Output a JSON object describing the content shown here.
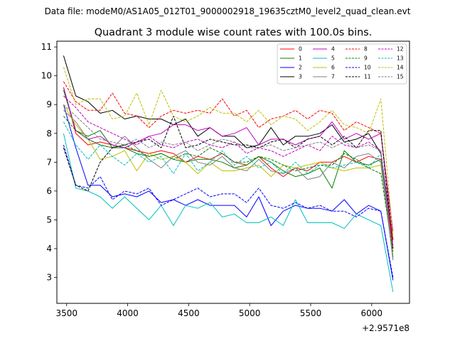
{
  "chart_data": {
    "type": "line",
    "suptitle": "Data file: modeM0/AS1A05_012T01_9000002918_19635cztM0_level2_quad_clean.evt",
    "title": "Quadrant 3 module wise count rates with 100.0s bins.",
    "xlabel": "",
    "ylabel": "",
    "x_offset_label": "+2.9571e8",
    "xlim": [
      3420,
      6310
    ],
    "ylim": [
      2.1,
      11.2
    ],
    "xticks": [
      3500,
      4000,
      4500,
      5000,
      5500,
      6000
    ],
    "yticks": [
      3,
      4,
      5,
      6,
      7,
      8,
      9,
      10,
      11
    ],
    "x": [
      3475,
      3575,
      3675,
      3775,
      3875,
      3975,
      4075,
      4175,
      4275,
      4375,
      4475,
      4575,
      4675,
      4775,
      4875,
      4975,
      5075,
      5175,
      5275,
      5375,
      5475,
      5575,
      5675,
      5775,
      5875,
      5975,
      6075,
      6175
    ],
    "legend_loc": "upper right",
    "series": [
      {
        "name": "0",
        "color": "#ff0000",
        "dash": "solid",
        "values": [
          9.6,
          8.0,
          7.6,
          7.7,
          7.6,
          7.5,
          7.4,
          7.3,
          7.4,
          7.3,
          7.0,
          7.2,
          7.1,
          7.3,
          7.0,
          6.9,
          7.2,
          6.8,
          6.5,
          6.8,
          6.7,
          7.0,
          7.0,
          7.2,
          7.0,
          7.2,
          7.1,
          4.0
        ]
      },
      {
        "name": "1",
        "color": "#008000",
        "dash": "solid",
        "values": [
          9.5,
          8.1,
          7.9,
          8.1,
          7.5,
          7.5,
          7.3,
          7.2,
          7.3,
          7.1,
          7.0,
          7.1,
          7.1,
          7.0,
          6.8,
          6.9,
          7.2,
          7.0,
          6.7,
          6.5,
          6.6,
          6.8,
          6.1,
          7.4,
          7.0,
          6.9,
          7.1,
          3.7
        ]
      },
      {
        "name": "2",
        "color": "#0000ff",
        "dash": "solid",
        "values": [
          9.0,
          7.5,
          6.2,
          6.2,
          5.8,
          5.9,
          5.8,
          6.0,
          5.6,
          5.7,
          5.5,
          5.7,
          5.5,
          5.5,
          5.5,
          5.1,
          5.8,
          4.8,
          5.3,
          5.5,
          5.4,
          5.4,
          5.3,
          5.7,
          5.2,
          5.5,
          5.3,
          2.9
        ]
      },
      {
        "name": "3",
        "color": "#000000",
        "dash": "solid",
        "values": [
          10.7,
          9.3,
          9.1,
          8.7,
          8.8,
          8.5,
          8.6,
          8.5,
          8.5,
          8.3,
          8.5,
          7.9,
          8.2,
          7.9,
          7.9,
          7.5,
          7.6,
          8.2,
          7.6,
          7.9,
          7.9,
          8.0,
          8.3,
          7.7,
          7.8,
          8.0,
          7.3,
          4.3
        ]
      },
      {
        "name": "4",
        "color": "#bf00bf",
        "dash": "solid",
        "values": [
          9.6,
          8.1,
          7.8,
          7.9,
          7.6,
          7.5,
          7.7,
          7.9,
          8.0,
          8.3,
          8.3,
          8.1,
          8.2,
          7.9,
          8.0,
          8.2,
          7.6,
          7.8,
          7.8,
          7.6,
          7.8,
          7.9,
          8.4,
          7.8,
          8.0,
          7.8,
          8.0,
          4.6
        ]
      },
      {
        "name": "5",
        "color": "#00bfbf",
        "dash": "solid",
        "values": [
          8.0,
          6.1,
          6.0,
          5.8,
          5.4,
          5.8,
          5.4,
          5.0,
          5.5,
          4.8,
          5.5,
          5.4,
          5.6,
          5.1,
          5.2,
          4.9,
          4.9,
          5.1,
          4.8,
          5.7,
          4.9,
          4.9,
          4.9,
          4.7,
          5.2,
          5.0,
          4.8,
          2.5
        ]
      },
      {
        "name": "6",
        "color": "#bfbf00",
        "dash": "solid",
        "values": [
          9.0,
          8.3,
          7.8,
          7.1,
          7.2,
          7.4,
          6.7,
          7.3,
          7.1,
          7.2,
          7.0,
          6.6,
          7.0,
          6.7,
          6.7,
          6.8,
          6.9,
          6.5,
          6.9,
          6.8,
          6.9,
          7.0,
          6.8,
          6.7,
          6.8,
          6.8,
          6.9,
          3.8
        ]
      },
      {
        "name": "7",
        "color": "#808080",
        "dash": "solid",
        "values": [
          8.8,
          8.4,
          7.8,
          7.6,
          7.5,
          7.9,
          7.5,
          7.1,
          6.8,
          7.2,
          7.4,
          7.0,
          6.9,
          7.2,
          6.8,
          6.7,
          7.1,
          6.7,
          6.6,
          6.8,
          6.4,
          6.5,
          7.0,
          6.8,
          7.2,
          7.3,
          7.0,
          3.6
        ]
      },
      {
        "name": "8",
        "color": "#ff0000",
        "dash": "dashed",
        "values": [
          9.8,
          9.1,
          8.8,
          8.8,
          9.4,
          8.7,
          8.6,
          8.2,
          8.6,
          8.8,
          8.7,
          8.8,
          8.7,
          9.2,
          8.6,
          8.8,
          8.2,
          8.5,
          8.6,
          8.8,
          8.5,
          8.8,
          8.7,
          8.1,
          8.4,
          8.2,
          8.0,
          4.3
        ]
      },
      {
        "name": "9",
        "color": "#008000",
        "dash": "dashed",
        "values": [
          8.6,
          8.1,
          7.8,
          7.6,
          7.5,
          7.6,
          7.4,
          7.2,
          7.3,
          7.1,
          7.3,
          7.2,
          7.5,
          7.3,
          7.0,
          7.0,
          7.2,
          7.1,
          6.9,
          6.7,
          6.8,
          6.9,
          6.9,
          7.3,
          7.1,
          6.8,
          6.6,
          3.9
        ]
      },
      {
        "name": "10",
        "color": "#0000ff",
        "dash": "dashed",
        "values": [
          7.6,
          6.2,
          6.1,
          6.5,
          5.7,
          6.0,
          5.9,
          6.1,
          5.5,
          5.7,
          5.9,
          6.1,
          5.8,
          5.9,
          5.9,
          5.6,
          6.1,
          5.5,
          5.4,
          5.6,
          5.4,
          5.5,
          5.3,
          5.3,
          5.1,
          5.4,
          5.3,
          3.0
        ]
      },
      {
        "name": "11",
        "color": "#000000",
        "dash": "dashed",
        "values": [
          7.5,
          6.2,
          6.0,
          7.0,
          7.5,
          7.6,
          7.7,
          7.8,
          7.5,
          8.6,
          7.5,
          7.6,
          7.8,
          7.7,
          7.6,
          7.6,
          7.5,
          7.7,
          7.8,
          7.5,
          7.8,
          7.9,
          7.6,
          7.9,
          7.5,
          8.1,
          8.1,
          4.0
        ]
      },
      {
        "name": "12",
        "color": "#bf00bf",
        "dash": "dashed",
        "values": [
          9.3,
          8.9,
          8.4,
          8.2,
          8.0,
          7.8,
          7.6,
          7.9,
          7.6,
          7.5,
          7.7,
          7.8,
          7.6,
          7.5,
          7.7,
          7.3,
          7.5,
          7.4,
          7.2,
          7.4,
          7.6,
          7.4,
          7.9,
          7.6,
          7.5,
          7.7,
          7.4,
          4.1
        ]
      },
      {
        "name": "13",
        "color": "#00bfbf",
        "dash": "dashed",
        "values": [
          8.4,
          7.6,
          7.1,
          7.6,
          7.2,
          6.9,
          7.3,
          7.0,
          7.2,
          6.6,
          7.3,
          6.7,
          7.0,
          7.4,
          6.9,
          7.2,
          6.8,
          7.0,
          6.6,
          7.0,
          6.6,
          6.9,
          6.8,
          6.9,
          7.0,
          6.8,
          7.3,
          3.6
        ]
      },
      {
        "name": "14",
        "color": "#bfbf00",
        "dash": "dashed",
        "values": [
          10.3,
          9.0,
          9.2,
          9.2,
          8.5,
          8.6,
          9.4,
          8.3,
          9.5,
          8.6,
          8.4,
          8.6,
          8.9,
          8.7,
          8.7,
          8.4,
          8.8,
          8.3,
          8.6,
          8.5,
          8.1,
          8.4,
          8.8,
          8.3,
          8.2,
          8.0,
          9.2,
          4.4
        ]
      },
      {
        "name": "15",
        "color": "#808080",
        "dash": "dashed",
        "values": [
          9.0,
          8.6,
          8.2,
          7.8,
          7.7,
          7.6,
          7.8,
          7.5,
          7.7,
          7.6,
          7.7,
          7.4,
          7.6,
          7.8,
          7.7,
          7.5,
          7.5,
          7.6,
          7.4,
          7.5,
          7.6,
          7.7,
          7.5,
          7.7,
          7.5,
          7.6,
          7.4,
          3.6
        ]
      }
    ]
  }
}
